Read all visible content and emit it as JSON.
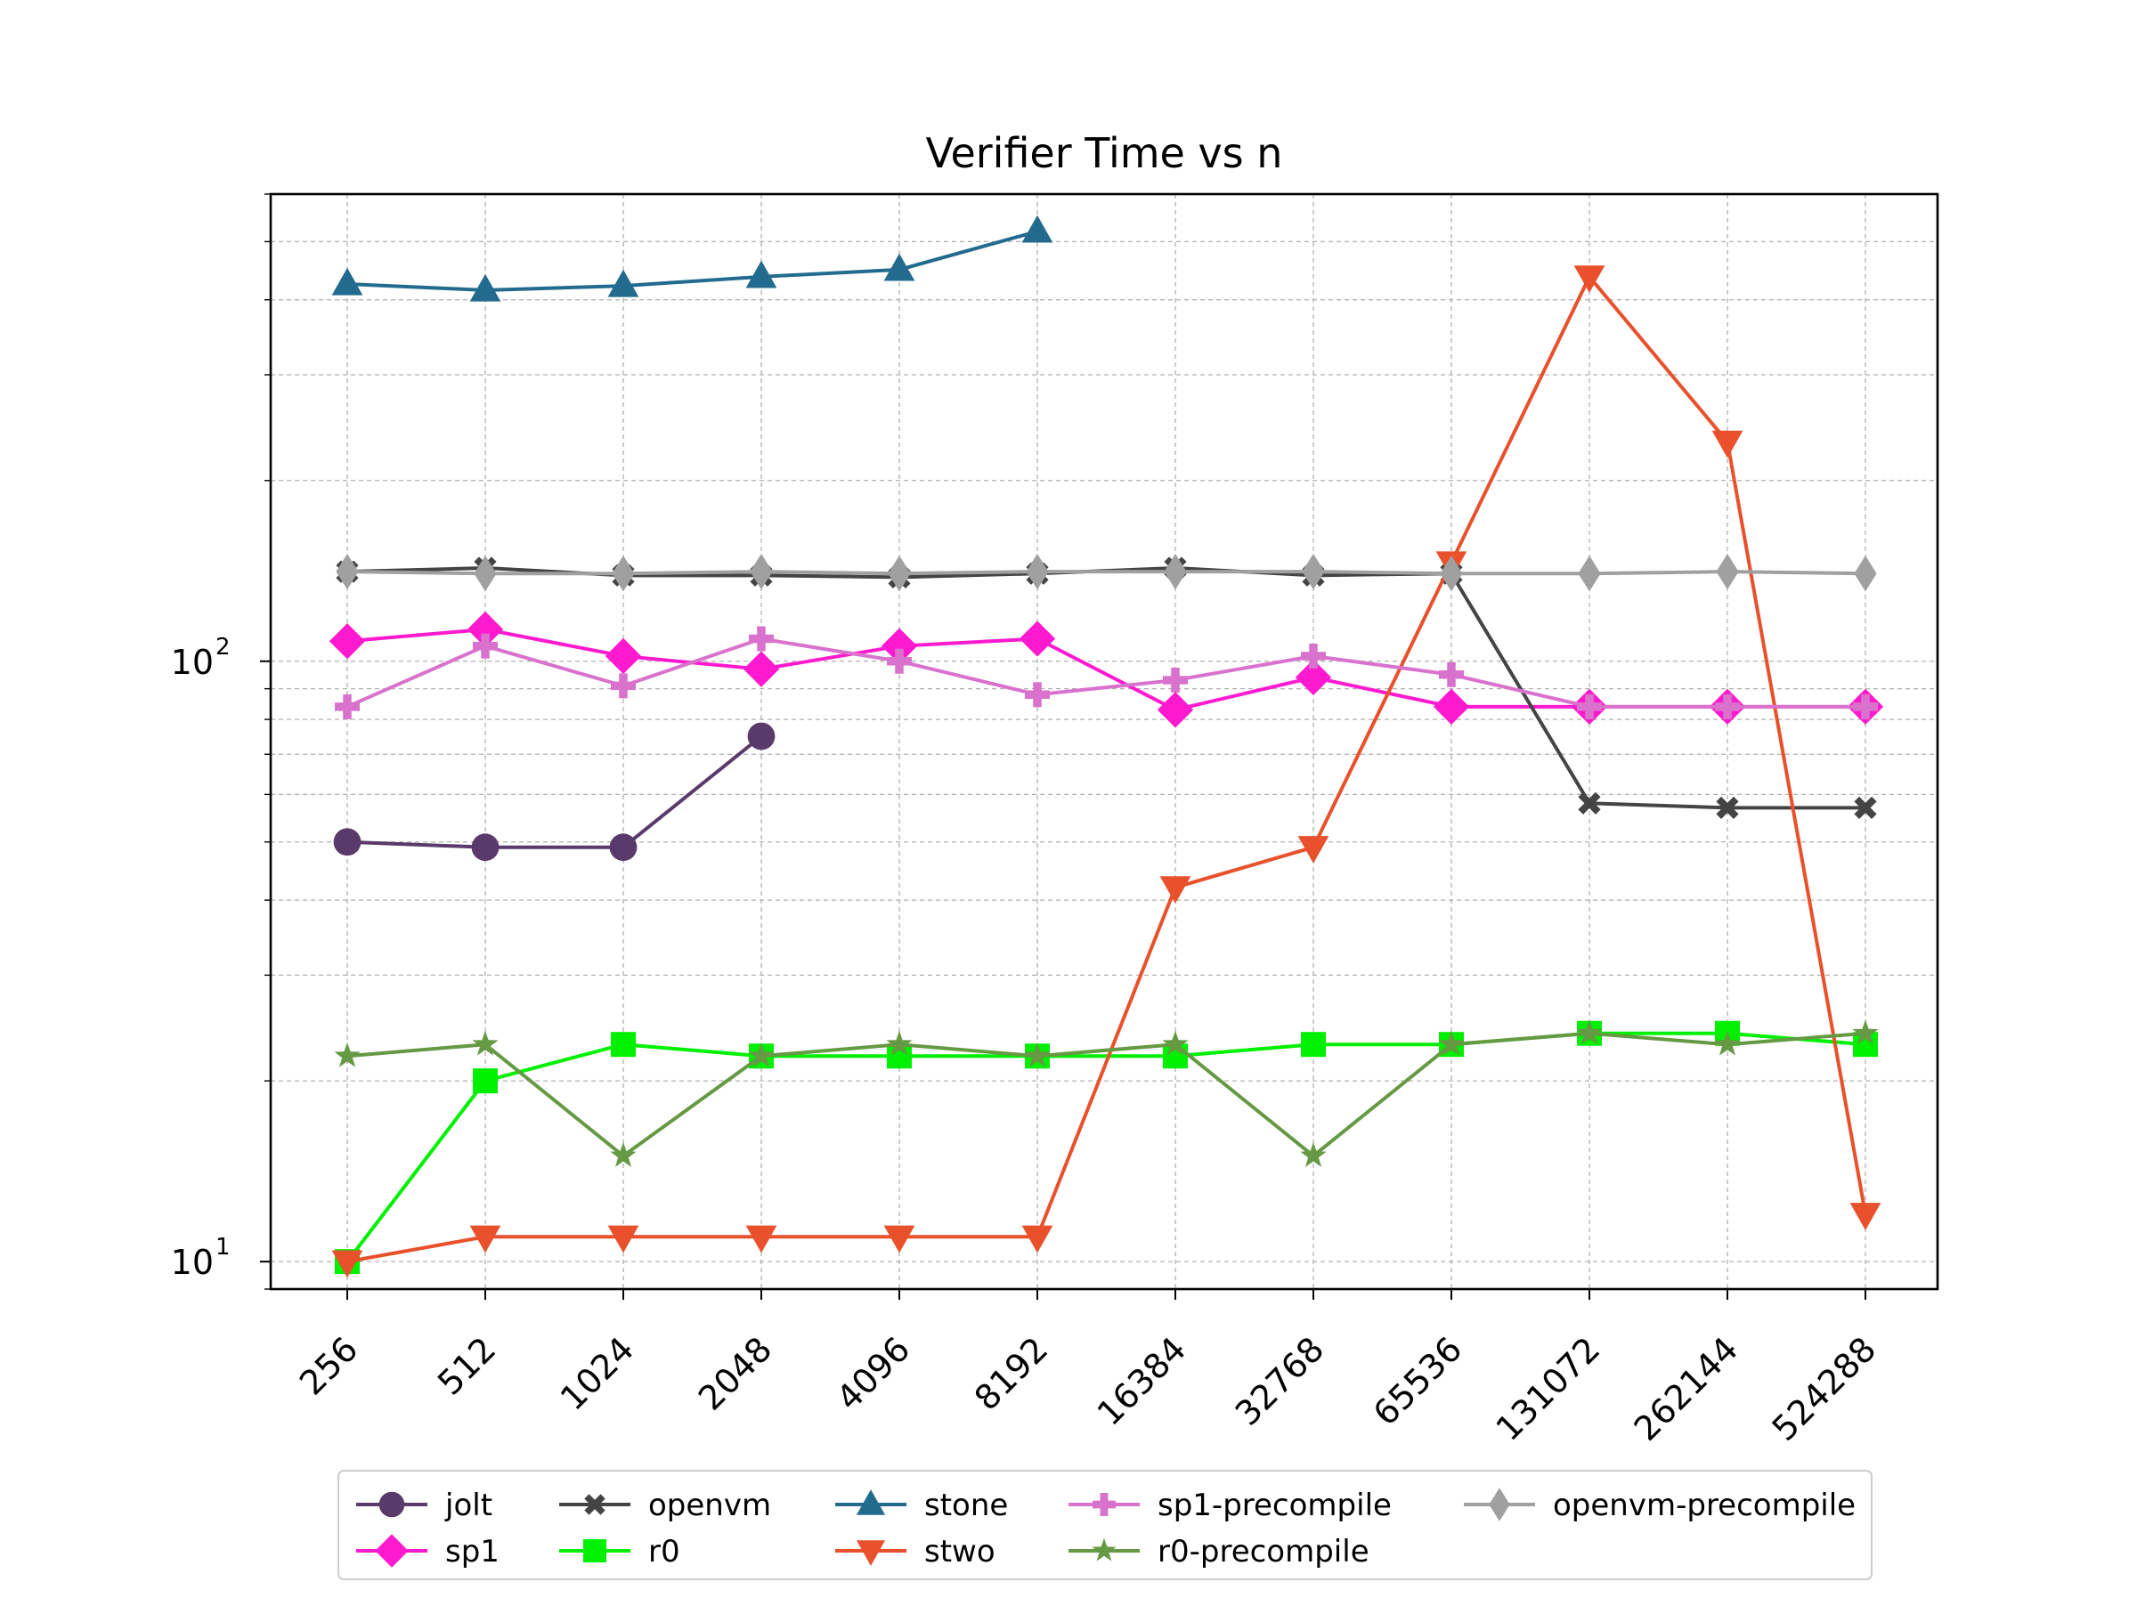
{
  "chart_data": {
    "type": "line",
    "title": "Verifier Time vs n",
    "xlabel": "",
    "ylabel": "",
    "yscale": "log",
    "ylim": [
      9,
      600
    ],
    "grid": true,
    "legend_position": "bottom-center",
    "categories": [
      "256",
      "512",
      "1024",
      "2048",
      "4096",
      "8192",
      "16384",
      "32768",
      "65536",
      "131072",
      "262144",
      "524288"
    ],
    "y_tick_labels": [
      {
        "value": 10,
        "base": "10",
        "exp": "1"
      },
      {
        "value": 100,
        "base": "10",
        "exp": "2"
      }
    ],
    "series": [
      {
        "name": "jolt",
        "color": "#5a3a6b",
        "marker": "circle",
        "values": [
          50,
          49,
          49,
          75,
          null,
          null,
          null,
          null,
          null,
          null,
          null,
          null
        ]
      },
      {
        "name": "sp1",
        "color": "#ff1ad0",
        "marker": "diamond",
        "values": [
          108,
          113,
          102,
          97,
          106,
          109,
          83,
          94,
          84,
          84,
          84,
          84
        ]
      },
      {
        "name": "openvm",
        "color": "#444444",
        "marker": "x",
        "values": [
          141,
          143,
          139,
          139,
          138,
          140,
          143,
          139,
          140,
          58,
          57,
          57
        ]
      },
      {
        "name": "r0",
        "color": "#00f000",
        "marker": "square",
        "values": [
          10,
          20,
          23,
          22,
          22,
          22,
          22,
          23,
          23,
          24,
          24,
          23
        ]
      },
      {
        "name": "stone",
        "color": "#236b8e",
        "marker": "triangle-up",
        "values": [
          425,
          415,
          422,
          437,
          449,
          520,
          null,
          null,
          null,
          null,
          null,
          null
        ]
      },
      {
        "name": "stwo",
        "color": "#e8512b",
        "marker": "triangle-down",
        "values": [
          10,
          11,
          11,
          11,
          11,
          11,
          42,
          49,
          146,
          437,
          232,
          12
        ]
      },
      {
        "name": "sp1-precompile",
        "color": "#d972cc",
        "marker": "plus",
        "values": [
          84,
          106,
          91,
          109,
          100,
          88,
          93,
          102,
          95,
          84,
          84,
          84
        ]
      },
      {
        "name": "r0-precompile",
        "color": "#669944",
        "marker": "star",
        "values": [
          22,
          23,
          15,
          22,
          23,
          22,
          23,
          15,
          23,
          24,
          23,
          24
        ]
      },
      {
        "name": "openvm-precompile",
        "color": "#a0a0a0",
        "marker": "thin-diamond",
        "values": [
          141,
          140,
          140,
          141,
          140,
          141,
          141,
          141,
          140,
          140,
          141,
          140
        ]
      }
    ]
  }
}
